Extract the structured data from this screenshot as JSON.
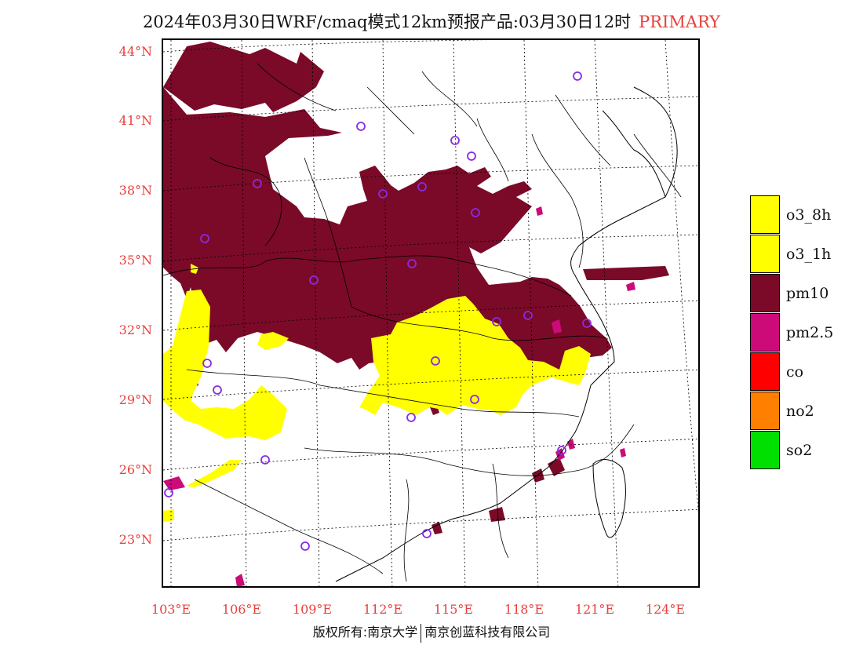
{
  "title": {
    "text": "2024年03月30日WRF/cmaq模式12km预报产品:03月30日12时",
    "tag": "PRIMARY",
    "tag_color": "#e8403c"
  },
  "axes": {
    "lat_labels": [
      "44°N",
      "41°N",
      "38°N",
      "35°N",
      "32°N",
      "29°N",
      "26°N",
      "23°N"
    ],
    "lon_labels": [
      "103°E",
      "106°E",
      "109°E",
      "112°E",
      "115°E",
      "118°E",
      "121°E",
      "124°E"
    ],
    "label_color": "#e8403c"
  },
  "legend": [
    {
      "label": "o3_8h",
      "color": "#ffff00"
    },
    {
      "label": "o3_1h",
      "color": "#ffff00"
    },
    {
      "label": "pm10",
      "color": "#7a0a28"
    },
    {
      "label": "pm2.5",
      "color": "#cc0a78"
    },
    {
      "label": "co",
      "color": "#ff0000"
    },
    {
      "label": "no2",
      "color": "#ff8000"
    },
    {
      "label": "so2",
      "color": "#00e000"
    }
  ],
  "footer": {
    "left": "版权所有:南京大学",
    "right": "南京创蓝科技有限公司"
  },
  "map": {
    "colors": {
      "pm10": "#7a0a28",
      "pm25": "#cc0a78",
      "o3": "#ffff00",
      "station": "#8a2be2",
      "border": "#000000",
      "grid": "#000000"
    }
  }
}
